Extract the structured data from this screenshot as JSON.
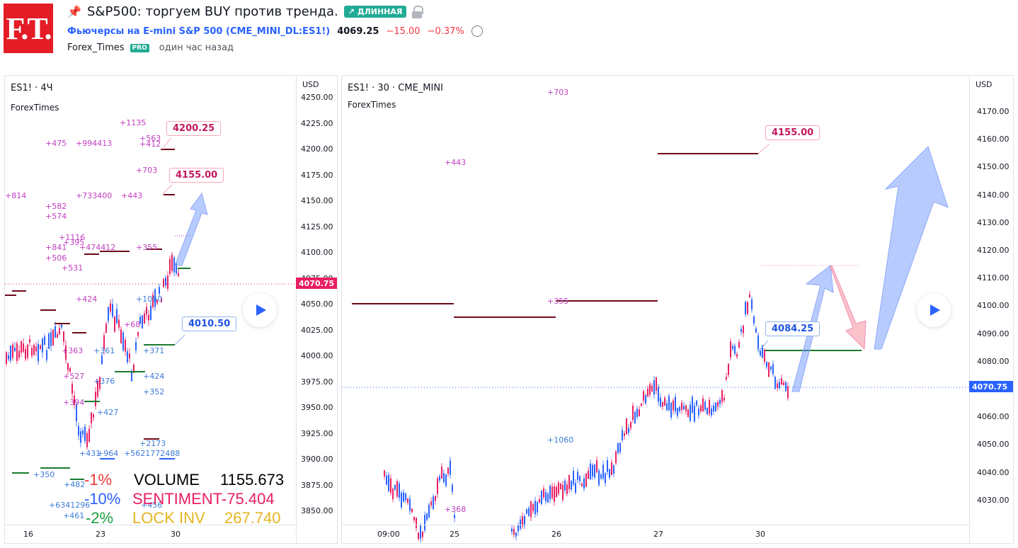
{
  "header": {
    "logo_text": "F.T.",
    "title": "S&P500: торгуем BUY против тренда.",
    "badge": "↗ ДЛИННАЯ",
    "symbol_text": "Фьючерсы на E-mini S&P 500 (CME_MINI_DL:ES1!)",
    "price": "4069.25",
    "change": "−15.00",
    "change_pct": "−0.37%",
    "author": "Forex_Times",
    "author_badge": "PRO",
    "time_ago": "один час назад",
    "icons": [
      "pin-icon",
      "lock-icon",
      "alarm-icon"
    ]
  },
  "left_chart": {
    "symbol": "ES1! · 4Ч",
    "author_label": "ForexTimes",
    "currency": "USD",
    "price_ticks": [
      "4250.00",
      "4225.00",
      "4200.00",
      "4175.00",
      "4150.00",
      "4125.00",
      "4100.00",
      "4075.00",
      "4050.00",
      "4025.00",
      "4000.00",
      "3975.00",
      "3950.00",
      "3925.00",
      "3900.00",
      "3875.00",
      "3850.00"
    ],
    "current_price": "4070.75",
    "time_ticks": [
      "16",
      "23",
      "30"
    ],
    "callouts": [
      "4200.25",
      "4155.00",
      "4010.50"
    ],
    "volume_labels": [
      "+1135",
      "+563",
      "+412",
      "+475",
      "+994413",
      "+703",
      "+814",
      "+733400",
      "+443",
      "+582",
      "+574",
      "+1116",
      "+395",
      "+841",
      "+474412",
      "+355",
      "+506",
      "+531",
      "+424",
      "+1060",
      "+363",
      "+361",
      "+371",
      "+527",
      "+376",
      "+424",
      "+352",
      "+394",
      "+427",
      "+2173",
      "+431",
      "+964",
      "+5621772488",
      "+350",
      "+482",
      "+6341296",
      "+456",
      "+461",
      "+68"
    ],
    "stats": {
      "row1_pct": "-1%",
      "row1_label": "VOLUME",
      "row1_value": "1155.673",
      "row2_pct": "-10%",
      "row2_label": "SENTIMENT",
      "row2_value": "-75.404",
      "row3_pct": "-2%",
      "row3_label": "LOCK INV",
      "row3_value": "267.740"
    }
  },
  "right_chart": {
    "symbol": "ES1! · 30 · CME_MINI",
    "author_label": "ForexTimes",
    "currency": "USD",
    "price_ticks": [
      "4170.00",
      "4160.00",
      "4150.00",
      "4140.00",
      "4130.00",
      "4120.00",
      "4110.00",
      "4100.00",
      "4090.00",
      "4080.00",
      "4070.00",
      "4060.00",
      "4050.00",
      "4040.00",
      "4030.00"
    ],
    "current_price": "4070.75",
    "time_ticks": [
      "09:00",
      "25",
      "26",
      "27",
      "30"
    ],
    "callouts": [
      "4155.00",
      "4084.25"
    ],
    "volume_labels": [
      "+703",
      "+443",
      "+355",
      "+1060",
      "+368"
    ]
  },
  "colors": {
    "up": "#2962ff",
    "down": "#e91e63",
    "accent_red": "#f23645",
    "green": "#22ab94",
    "dark_red_level": "#6d0a17",
    "green_level": "#1b7a2f"
  }
}
